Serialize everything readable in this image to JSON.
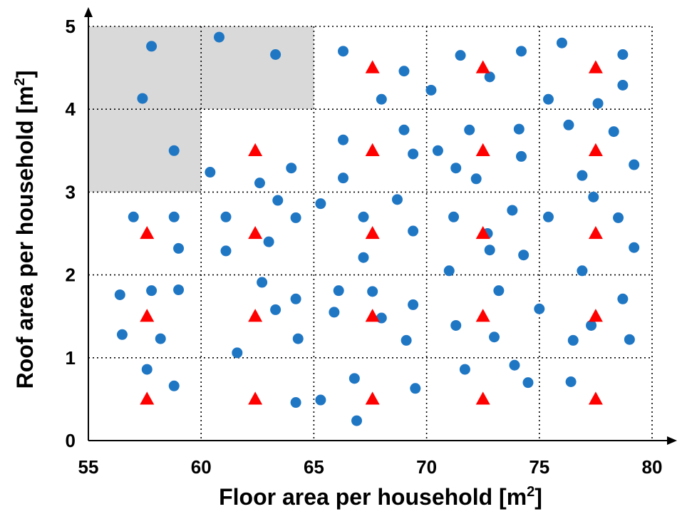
{
  "chart_data": {
    "type": "scatter",
    "xlabel_main": "Floor area per household [m",
    "xlabel_sup": "2",
    "xlabel_end": "]",
    "ylabel_main": "Roof area per household [m",
    "ylabel_sup": "2",
    "ylabel_end": "]",
    "xlim": [
      55,
      80
    ],
    "ylim": [
      0,
      5
    ],
    "x_ticks": [
      "55",
      "60",
      "65",
      "70",
      "75",
      "80"
    ],
    "y_ticks": [
      "0",
      "1",
      "2",
      "3",
      "4",
      "5"
    ],
    "grid": "dotted",
    "shaded_regions": [
      {
        "x": [
          55,
          65
        ],
        "y": [
          4,
          5
        ]
      },
      {
        "x": [
          55,
          60
        ],
        "y": [
          3,
          4
        ]
      }
    ],
    "colors": {
      "circle": "#1f77c4",
      "triangle": "#ff0000",
      "shade": "#d9d9d9"
    },
    "series": [
      {
        "marker": "circle",
        "points": [
          [
            57.8,
            4.76
          ],
          [
            57.4,
            4.13
          ],
          [
            58.8,
            3.5
          ],
          [
            60.8,
            4.87
          ],
          [
            63.3,
            4.66
          ],
          [
            57.0,
            2.7
          ],
          [
            58.8,
            2.7
          ],
          [
            59.0,
            2.32
          ],
          [
            56.4,
            1.76
          ],
          [
            57.8,
            1.81
          ],
          [
            59.0,
            1.82
          ],
          [
            56.5,
            1.28
          ],
          [
            58.2,
            1.23
          ],
          [
            57.6,
            0.86
          ],
          [
            58.8,
            0.66
          ],
          [
            60.4,
            3.24
          ],
          [
            62.6,
            3.11
          ],
          [
            64.0,
            3.29
          ],
          [
            63.4,
            2.9
          ],
          [
            61.1,
            2.7
          ],
          [
            64.2,
            2.69
          ],
          [
            61.1,
            2.29
          ],
          [
            63.0,
            2.4
          ],
          [
            62.7,
            1.91
          ],
          [
            63.3,
            1.58
          ],
          [
            64.2,
            1.71
          ],
          [
            61.6,
            1.06
          ],
          [
            64.3,
            1.23
          ],
          [
            64.2,
            0.46
          ],
          [
            66.3,
            4.7
          ],
          [
            68.0,
            4.12
          ],
          [
            69.0,
            4.46
          ],
          [
            70.2,
            4.23
          ],
          [
            66.3,
            3.63
          ],
          [
            69.0,
            3.75
          ],
          [
            69.4,
            3.46
          ],
          [
            66.3,
            3.17
          ],
          [
            65.3,
            2.86
          ],
          [
            68.7,
            2.91
          ],
          [
            67.2,
            2.7
          ],
          [
            69.4,
            2.53
          ],
          [
            67.2,
            2.21
          ],
          [
            66.1,
            1.81
          ],
          [
            67.6,
            1.8
          ],
          [
            65.9,
            1.55
          ],
          [
            68.0,
            1.48
          ],
          [
            69.4,
            1.64
          ],
          [
            69.1,
            1.21
          ],
          [
            65.3,
            0.49
          ],
          [
            66.8,
            0.75
          ],
          [
            69.5,
            0.63
          ],
          [
            66.9,
            0.24
          ],
          [
            71.5,
            4.65
          ],
          [
            72.8,
            4.39
          ],
          [
            74.2,
            4.7
          ],
          [
            71.9,
            3.75
          ],
          [
            74.1,
            3.76
          ],
          [
            70.5,
            3.5
          ],
          [
            71.3,
            3.29
          ],
          [
            72.2,
            3.16
          ],
          [
            74.2,
            3.43
          ],
          [
            71.2,
            2.7
          ],
          [
            72.7,
            2.5
          ],
          [
            72.8,
            2.3
          ],
          [
            73.8,
            2.78
          ],
          [
            74.3,
            2.24
          ],
          [
            71.0,
            2.05
          ],
          [
            73.2,
            1.81
          ],
          [
            75.0,
            1.59
          ],
          [
            71.3,
            1.39
          ],
          [
            73.0,
            1.25
          ],
          [
            71.7,
            0.86
          ],
          [
            73.9,
            0.91
          ],
          [
            74.5,
            0.7
          ],
          [
            76.0,
            4.8
          ],
          [
            78.7,
            4.66
          ],
          [
            78.7,
            4.29
          ],
          [
            75.4,
            4.12
          ],
          [
            77.6,
            4.07
          ],
          [
            76.3,
            3.81
          ],
          [
            78.3,
            3.73
          ],
          [
            79.2,
            3.33
          ],
          [
            76.9,
            3.2
          ],
          [
            77.4,
            2.94
          ],
          [
            75.4,
            2.7
          ],
          [
            78.5,
            2.69
          ],
          [
            79.2,
            2.33
          ],
          [
            76.9,
            2.05
          ],
          [
            78.7,
            1.71
          ],
          [
            77.3,
            1.39
          ],
          [
            76.5,
            1.21
          ],
          [
            79.0,
            1.22
          ],
          [
            76.4,
            0.71
          ]
        ]
      },
      {
        "marker": "triangle",
        "points": [
          [
            67.6,
            4.5
          ],
          [
            72.5,
            4.5
          ],
          [
            77.5,
            4.5
          ],
          [
            62.4,
            3.5
          ],
          [
            67.6,
            3.5
          ],
          [
            72.5,
            3.5
          ],
          [
            77.5,
            3.5
          ],
          [
            57.6,
            2.5
          ],
          [
            62.4,
            2.5
          ],
          [
            67.6,
            2.5
          ],
          [
            72.5,
            2.5
          ],
          [
            77.5,
            2.5
          ],
          [
            57.6,
            1.5
          ],
          [
            62.4,
            1.5
          ],
          [
            67.6,
            1.5
          ],
          [
            72.5,
            1.5
          ],
          [
            77.5,
            1.5
          ],
          [
            57.6,
            0.5
          ],
          [
            62.4,
            0.5
          ],
          [
            67.6,
            0.5
          ],
          [
            72.5,
            0.5
          ],
          [
            77.5,
            0.5
          ]
        ]
      }
    ]
  }
}
